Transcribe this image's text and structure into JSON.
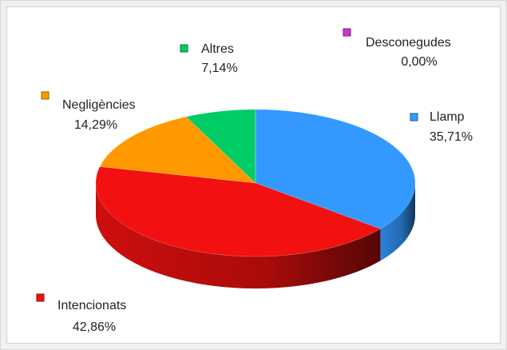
{
  "chart_data": {
    "type": "pie",
    "categories": [
      "Llamp",
      "Intencionats",
      "Negligències",
      "Altres",
      "Desconegudes"
    ],
    "values": [
      35.71,
      42.86,
      14.29,
      7.14,
      0.0
    ],
    "value_labels": [
      "35,71%",
      "42,86%",
      "14,29%",
      "7,14%",
      "0,00%"
    ],
    "colors": [
      "#3399ff",
      "#f21010",
      "#ff9900",
      "#00cc66",
      "#cc33cc"
    ]
  }
}
